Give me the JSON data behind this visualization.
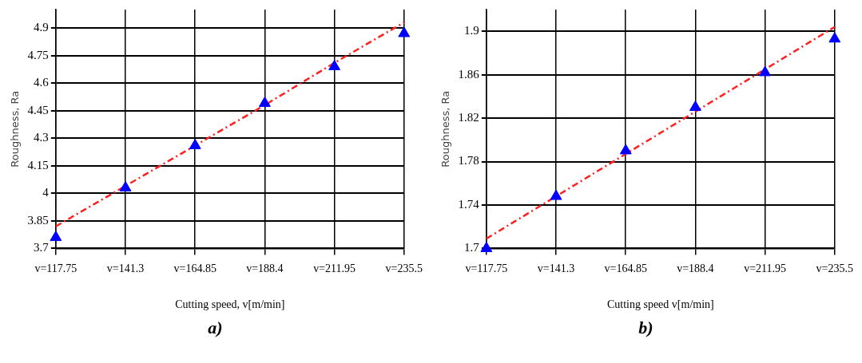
{
  "chart_data": [
    {
      "type": "scatter",
      "xlabel": "Cutting speed, v[m/min]",
      "ylabel": "Roughness, Ra",
      "annotations": [
        "a)"
      ],
      "categories": [
        "v=117.75",
        "v=141.3",
        "v=164.85",
        "v=188.4",
        "v=211.95",
        "v=235.5"
      ],
      "ylim": [
        3.7,
        5.0
      ],
      "yticks": [
        3.7,
        3.85,
        4,
        4.15,
        4.3,
        4.45,
        4.6,
        4.75,
        4.9
      ],
      "grid": true,
      "marker": "triangle",
      "series": [
        {
          "type": "line",
          "color": "#ff2020",
          "line_style": "dashed",
          "marker": "none",
          "values": [
            3.82,
            4.04,
            4.26,
            4.48,
            4.71,
            4.93
          ]
        },
        {
          "color": "#0000ff",
          "values": [
            3.76,
            4.03,
            4.26,
            4.49,
            4.69,
            4.87
          ]
        }
      ]
    },
    {
      "type": "scatter",
      "xlabel": "Cutting speed v[m/min]",
      "ylabel": "Roughness, Ra",
      "annotations": [
        "b)"
      ],
      "categories": [
        "v=117.75",
        "v=141.3",
        "v=164.85",
        "v=188.4",
        "v=211.95",
        "v=235.5"
      ],
      "ylim": [
        1.7,
        1.92
      ],
      "yticks": [
        1.7,
        1.74,
        1.78,
        1.82,
        1.86,
        1.9
      ],
      "grid": true,
      "marker": "triangle",
      "series": [
        {
          "type": "line",
          "color": "#ff2020",
          "line_style": "dashed",
          "marker": "none",
          "values": [
            1.709,
            1.748,
            1.787,
            1.826,
            1.865,
            1.904
          ]
        },
        {
          "color": "#0000ff",
          "values": [
            1.7,
            1.748,
            1.79,
            1.83,
            1.862,
            1.893
          ]
        }
      ]
    }
  ]
}
